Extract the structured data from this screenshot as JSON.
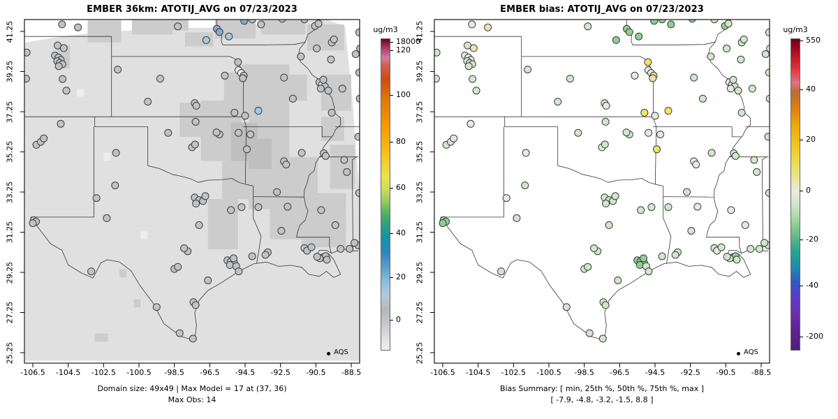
{
  "panels": {
    "left": {
      "title": "EMBER 36km: ATOTIJ_AVG on 07/23/2023",
      "caption_line1": "Domain size: 49x49 | Max Model = 17 at (37, 36)",
      "caption_line2": "Max Obs: 14",
      "legend_label": "AQS",
      "colorbar": {
        "label": "ug/m3",
        "ticks": [
          "18000",
          "120",
          "100",
          "80",
          "60",
          "40",
          "20",
          "0"
        ],
        "tick_pos": [
          0.011,
          0.038,
          0.182,
          0.333,
          0.481,
          0.627,
          0.769,
          0.906
        ],
        "stops": [
          [
            0,
            "#6e0018"
          ],
          [
            0.03,
            "#b53a6e"
          ],
          [
            0.06,
            "#cf7d9b"
          ],
          [
            0.09,
            "#d05c46"
          ],
          [
            0.13,
            "#cf4b12"
          ],
          [
            0.19,
            "#e07607"
          ],
          [
            0.26,
            "#f09200"
          ],
          [
            0.33,
            "#f7ae0c"
          ],
          [
            0.39,
            "#f3cb2a"
          ],
          [
            0.44,
            "#ece04a"
          ],
          [
            0.48,
            "#cfdf5a"
          ],
          [
            0.52,
            "#97cc5e"
          ],
          [
            0.56,
            "#57b25f"
          ],
          [
            0.6,
            "#26a084"
          ],
          [
            0.64,
            "#1793a8"
          ],
          [
            0.69,
            "#2f86be"
          ],
          [
            0.74,
            "#5fa3cd"
          ],
          [
            0.79,
            "#93c3dd"
          ],
          [
            0.83,
            "#b4cbd8"
          ],
          [
            0.87,
            "#b2b7bb"
          ],
          [
            0.91,
            "#c3c6c8"
          ],
          [
            0.95,
            "#d8d9da"
          ],
          [
            1,
            "#f1f1f1"
          ]
        ]
      }
    },
    "right": {
      "title": "EMBER bias: ATOTIJ_AVG on 07/23/2023",
      "caption_line1": "Bias Summary: [ min, 25th %, 50th %, 75th %, max ]",
      "caption_line2": "[ -7.9,  -4.8,  -3.2,  -1.5,  8.8 ]",
      "legend_label": "AQS",
      "colorbar": {
        "label": "ug/m3",
        "ticks": [
          "550",
          "40",
          "20",
          "0",
          "-20",
          "-40",
          "-200"
        ],
        "tick_pos": [
          0.007,
          0.164,
          0.326,
          0.49,
          0.647,
          0.796,
          0.96
        ],
        "stops": [
          [
            0,
            "#6e0018"
          ],
          [
            0.05,
            "#ba1021"
          ],
          [
            0.1,
            "#e23a40"
          ],
          [
            0.14,
            "#dd7386"
          ],
          [
            0.17,
            "#c06a30"
          ],
          [
            0.22,
            "#da7f10"
          ],
          [
            0.28,
            "#ecaa08"
          ],
          [
            0.34,
            "#f0c520"
          ],
          [
            0.4,
            "#ecdc50"
          ],
          [
            0.45,
            "#ebe69c"
          ],
          [
            0.49,
            "#e8ebe3"
          ],
          [
            0.53,
            "#d2e7cd"
          ],
          [
            0.58,
            "#a5d6a2"
          ],
          [
            0.63,
            "#66bd85"
          ],
          [
            0.68,
            "#2aa690"
          ],
          [
            0.73,
            "#1e8fa8"
          ],
          [
            0.78,
            "#3058c6"
          ],
          [
            0.83,
            "#5e3bca"
          ],
          [
            0.88,
            "#6c2fae"
          ],
          [
            0.94,
            "#5c2390"
          ],
          [
            1,
            "#4e1e78"
          ]
        ]
      }
    }
  },
  "axes": {
    "x_ticks": [
      "-106.5",
      "-104.5",
      "-102.5",
      "-100.5",
      "-98.5",
      "-96.5",
      "-94.5",
      "-92.5",
      "-90.5",
      "-88.5"
    ],
    "y_ticks": [
      "41.25",
      "39.25",
      "37.25",
      "35.25",
      "33.25",
      "31.25",
      "29.25",
      "27.25",
      "25.25"
    ]
  },
  "chart_data": {
    "type": "map-scatter",
    "projection": "lonlat-linear",
    "lon_range": [
      -107.0,
      -88.0
    ],
    "lat_range": [
      24.7,
      41.85
    ],
    "left_map": "gridded model field (36km cells, mostly 0-10 ug/m3 grays) with AQS obs dots",
    "right_map": "model-obs bias at AQS sites (mostly -5 to 0, pale green)",
    "obs_color_key": {
      "g": "#bfc3c5",
      "w": "#f0f0ee",
      "b": "#85abc8",
      "lb": "#a9c9dc"
    },
    "bias_color_key": {
      "pg": "#cfe7ca",
      "g2": "#8fce92",
      "gy": "#e7e9e7",
      "y": "#f3e266",
      "py": "#ece2bb"
    },
    "dot_stroke": "#3c3c3c",
    "model_field": {
      "base_color": "#e0e0e0",
      "shade1": "#cccccc",
      "shade2": "#bfbfbf",
      "light": "#eeeeee",
      "max_cell": {
        "lon": -93.75,
        "lat": 37.35,
        "size": 0.38,
        "color": "#a3cade",
        "grid_ij": "(37, 36)",
        "value": 17
      },
      "patches": [
        [
          -105.15,
          39.4,
          0.75,
          1.15,
          1
        ],
        [
          -103.4,
          40.7,
          1.9,
          1.1,
          1
        ],
        [
          -100.9,
          41.1,
          2.3,
          0.9,
          1
        ],
        [
          -97.9,
          40.5,
          1.6,
          0.7,
          1
        ],
        [
          -96.2,
          40.9,
          2.3,
          1.0,
          1
        ],
        [
          -93.6,
          41.1,
          2.5,
          0.9,
          1
        ],
        [
          -91.0,
          40.3,
          2.1,
          1.3,
          1
        ],
        [
          -98.2,
          36.0,
          1.7,
          1.7,
          1
        ],
        [
          -97.0,
          34.8,
          2.3,
          3.0,
          1
        ],
        [
          -95.8,
          32.9,
          2.6,
          3.8,
          1
        ],
        [
          -94.3,
          32.4,
          2.3,
          4.8,
          1
        ],
        [
          -93.1,
          30.9,
          2.7,
          4.1,
          1
        ],
        [
          -91.3,
          30.5,
          2.5,
          2.7,
          1
        ],
        [
          -96.6,
          30.4,
          1.7,
          2.5,
          1
        ],
        [
          -95.7,
          37.4,
          2.1,
          1.8,
          1
        ],
        [
          -94.7,
          37.2,
          2.7,
          2.4,
          1
        ],
        [
          -90.2,
          37.3,
          1.7,
          1.8,
          1
        ],
        [
          -89.7,
          33.4,
          1.4,
          2.2,
          1
        ],
        [
          -92.5,
          37.8,
          1.5,
          1.3,
          1
        ],
        [
          -99.2,
          41.3,
          1.5,
          0.75,
          1
        ],
        [
          -90.2,
          35.8,
          1.3,
          1.2,
          1
        ],
        [
          -95.3,
          34.8,
          1.5,
          1.9,
          2
        ],
        [
          -94.3,
          34.4,
          1.3,
          1.5,
          2
        ],
        [
          -101.6,
          29.0,
          0.4,
          0.4,
          1
        ],
        [
          -100.8,
          27.5,
          0.4,
          0.4,
          1
        ],
        [
          -103.0,
          25.8,
          0.75,
          0.4,
          1
        ],
        [
          -104.0,
          38.0,
          0.4,
          0.4,
          0
        ],
        [
          -102.5,
          34.8,
          0.4,
          0.4,
          0
        ],
        [
          -100.4,
          30.9,
          0.4,
          0.4,
          0
        ]
      ]
    },
    "stations": [
      [
        -104.85,
        41.6,
        "g",
        "gy"
      ],
      [
        -103.95,
        41.45,
        "g",
        "py"
      ],
      [
        -106.85,
        40.2,
        "g",
        "pg"
      ],
      [
        -105.1,
        40.55,
        "g",
        "pg"
      ],
      [
        -104.75,
        40.42,
        "g",
        "py"
      ],
      [
        -105.25,
        40.05,
        "g",
        "gy"
      ],
      [
        -105.05,
        39.95,
        "g",
        "gy"
      ],
      [
        -104.92,
        39.83,
        "g",
        "gy"
      ],
      [
        -105.12,
        39.77,
        "g",
        "gy"
      ],
      [
        -104.98,
        39.68,
        "g",
        "pg"
      ],
      [
        -104.83,
        39.62,
        "g",
        "pg"
      ],
      [
        -105.03,
        39.52,
        "g",
        "pg"
      ],
      [
        -104.82,
        38.88,
        "g",
        "pg"
      ],
      [
        -104.6,
        38.3,
        "g",
        "pg"
      ],
      [
        -106.88,
        38.9,
        "g",
        "pg"
      ],
      [
        -104.92,
        36.65,
        "g",
        "gy"
      ],
      [
        -106.3,
        35.6,
        "g",
        "pg"
      ],
      [
        -106.05,
        35.75,
        "g",
        "pg"
      ],
      [
        -105.88,
        35.92,
        "g",
        "gy"
      ],
      [
        -106.45,
        31.85,
        "g",
        "g2"
      ],
      [
        -106.32,
        31.78,
        "g",
        "g2"
      ],
      [
        -106.5,
        31.7,
        "g",
        "g2"
      ],
      [
        -103.2,
        29.3,
        "g",
        "pg"
      ],
      [
        -102.9,
        32.95,
        "g",
        "gy"
      ],
      [
        -102.32,
        31.95,
        "g",
        "pg"
      ],
      [
        -101.8,
        35.2,
        "g",
        "gy"
      ],
      [
        -101.85,
        33.58,
        "g",
        "pg"
      ],
      [
        -99.5,
        27.52,
        "g",
        "pg"
      ],
      [
        -98.2,
        26.22,
        "g",
        "pg"
      ],
      [
        -97.45,
        25.95,
        "g",
        "pg"
      ],
      [
        -97.42,
        27.77,
        "g",
        "pg"
      ],
      [
        -97.3,
        27.62,
        "g",
        "pg"
      ],
      [
        -98.5,
        29.42,
        "g",
        "pg"
      ],
      [
        -98.3,
        29.52,
        "g",
        "pg"
      ],
      [
        -97.75,
        30.3,
        "g",
        "pg"
      ],
      [
        -97.95,
        30.45,
        "g",
        "pg"
      ],
      [
        -97.1,
        31.6,
        "g",
        "pg"
      ],
      [
        -96.6,
        28.85,
        "g",
        "pg"
      ],
      [
        -97.35,
        32.98,
        "g",
        "pg"
      ],
      [
        -97.1,
        32.85,
        "g",
        "pg"
      ],
      [
        -96.88,
        32.8,
        "g",
        "pg"
      ],
      [
        -97.28,
        32.68,
        "g",
        "pg"
      ],
      [
        -96.75,
        33.05,
        "g",
        "pg"
      ],
      [
        -95.3,
        32.35,
        "g",
        "pg"
      ],
      [
        -94.7,
        32.5,
        "g",
        "pg"
      ],
      [
        -94.1,
        30.05,
        "g",
        "pg"
      ],
      [
        -95.5,
        29.85,
        "g",
        "g2"
      ],
      [
        -95.32,
        29.78,
        "g",
        "g2"
      ],
      [
        -95.12,
        29.72,
        "g",
        "g2"
      ],
      [
        -95.36,
        29.62,
        "g",
        "g2"
      ],
      [
        -95.0,
        29.56,
        "g",
        "pg"
      ],
      [
        -95.15,
        29.95,
        "g",
        "g2"
      ],
      [
        -94.86,
        29.3,
        "g",
        "pg"
      ],
      [
        -97.5,
        35.48,
        "g",
        "gy"
      ],
      [
        -97.33,
        35.62,
        "g",
        "pg"
      ],
      [
        -95.95,
        36.12,
        "g",
        "pg"
      ],
      [
        -96.12,
        36.22,
        "g",
        "pg"
      ],
      [
        -98.85,
        36.2,
        "g",
        "pg"
      ],
      [
        -97.3,
        36.75,
        "g",
        "pg"
      ],
      [
        -94.87,
        36.2,
        "g",
        "gy"
      ],
      [
        -94.4,
        35.38,
        "g",
        "y"
      ],
      [
        -94.2,
        36.12,
        "g",
        "gy"
      ],
      [
        -92.3,
        34.78,
        "g",
        "gy"
      ],
      [
        -92.18,
        34.62,
        "g",
        "gy"
      ],
      [
        -92.7,
        33.25,
        "g",
        "pg"
      ],
      [
        -91.3,
        35.2,
        "g",
        "pg"
      ],
      [
        -97.35,
        37.68,
        "g",
        "pg"
      ],
      [
        -97.26,
        37.55,
        "g",
        "gy"
      ],
      [
        -95.65,
        39.05,
        "g",
        "gy"
      ],
      [
        -100.0,
        37.75,
        "g",
        "pg"
      ],
      [
        -101.7,
        39.35,
        "g",
        "pg"
      ],
      [
        -99.3,
        38.9,
        "g",
        "pg"
      ],
      [
        -95.1,
        37.2,
        "g",
        "y"
      ],
      [
        -94.9,
        39.72,
        "g",
        "y"
      ],
      [
        -94.88,
        39.32,
        "w",
        "gy"
      ],
      [
        -94.72,
        39.18,
        "w",
        "gy"
      ],
      [
        -94.58,
        39.05,
        "g",
        "y"
      ],
      [
        -94.63,
        38.92,
        "g",
        "py"
      ],
      [
        -96.1,
        41.38,
        "b",
        "g2"
      ],
      [
        -95.95,
        41.22,
        "b",
        "g2"
      ],
      [
        -96.7,
        40.82,
        "lb",
        "g2"
      ],
      [
        -98.3,
        41.5,
        "g",
        "pg"
      ],
      [
        -95.42,
        41.0,
        "lb",
        "g2"
      ],
      [
        -94.55,
        41.78,
        "b",
        "g2"
      ],
      [
        -94.1,
        41.85,
        "g",
        "g2"
      ],
      [
        -93.6,
        41.6,
        "g",
        "g2"
      ],
      [
        -92.4,
        41.88,
        "g",
        "g2"
      ],
      [
        -91.15,
        41.85,
        "g",
        "pg"
      ],
      [
        -90.55,
        41.52,
        "g",
        "g2"
      ],
      [
        -90.35,
        41.64,
        "g",
        "pg"
      ],
      [
        -90.45,
        40.4,
        "g",
        "pg"
      ],
      [
        -92.3,
        38.95,
        "g",
        "pg"
      ],
      [
        -93.75,
        37.3,
        "lb",
        "y"
      ],
      [
        -94.5,
        37.05,
        "g",
        "gy"
      ],
      [
        -91.8,
        37.9,
        "g",
        "pg"
      ],
      [
        -90.3,
        38.72,
        "g",
        "gy"
      ],
      [
        -90.15,
        38.6,
        "w",
        "gy"
      ],
      [
        -90.0,
        38.52,
        "g",
        "pg"
      ],
      [
        -90.08,
        38.84,
        "g",
        "pg"
      ],
      [
        -90.22,
        38.4,
        "g",
        "gy"
      ],
      [
        -89.8,
        38.3,
        "g",
        "pg"
      ],
      [
        -89.6,
        37.2,
        "g",
        "pg"
      ],
      [
        -90.05,
        35.18,
        "g",
        "pg"
      ],
      [
        -89.95,
        35.05,
        "g",
        "pg"
      ],
      [
        -93.75,
        32.5,
        "g",
        "pg"
      ],
      [
        -92.1,
        32.52,
        "g",
        "gy"
      ],
      [
        -92.45,
        31.32,
        "g",
        "pg"
      ],
      [
        -93.22,
        30.25,
        "g",
        "pg"
      ],
      [
        -93.35,
        30.12,
        "g",
        "pg"
      ],
      [
        -91.15,
        30.46,
        "g",
        "pg"
      ],
      [
        -91.0,
        30.33,
        "g",
        "gy"
      ],
      [
        -90.75,
        30.5,
        "g",
        "pg"
      ],
      [
        -90.1,
        30.0,
        "g",
        "g2"
      ],
      [
        -89.95,
        30.06,
        "g",
        "g2"
      ],
      [
        -90.28,
        29.95,
        "g",
        "pg"
      ],
      [
        -90.43,
        30.03,
        "g",
        "pg"
      ],
      [
        -89.88,
        29.88,
        "g",
        "pg"
      ],
      [
        -90.2,
        32.35,
        "g",
        "gy"
      ],
      [
        -89.4,
        31.6,
        "g",
        "gy"
      ],
      [
        -89.1,
        30.42,
        "g",
        "pg"
      ],
      [
        -88.6,
        30.42,
        "g",
        "pg"
      ],
      [
        -88.75,
        34.25,
        "g",
        "pg"
      ],
      [
        -88.9,
        34.85,
        "g",
        "pg"
      ],
      [
        -89.6,
        40.7,
        "g",
        "pg"
      ],
      [
        -89.48,
        40.85,
        "g",
        "pg"
      ],
      [
        -89.65,
        39.85,
        "g",
        "pg"
      ],
      [
        -89.0,
        38.4,
        "g",
        "pg"
      ],
      [
        -88.25,
        40.12,
        "g",
        "pg"
      ],
      [
        -91.35,
        40.0,
        "g",
        "pg"
      ],
      [
        -88.05,
        41.2,
        "g",
        "pg"
      ],
      [
        -88.0,
        40.4,
        "g",
        "gy"
      ],
      [
        -88.05,
        39.2,
        "g",
        "py"
      ],
      [
        -88.02,
        37.9,
        "g",
        "pg"
      ],
      [
        -88.1,
        36.0,
        "g",
        "pg"
      ],
      [
        -88.05,
        33.2,
        "g",
        "pg"
      ],
      [
        -88.1,
        30.6,
        "g",
        "pg"
      ],
      [
        -88.32,
        30.72,
        "g",
        "pg"
      ]
    ]
  }
}
